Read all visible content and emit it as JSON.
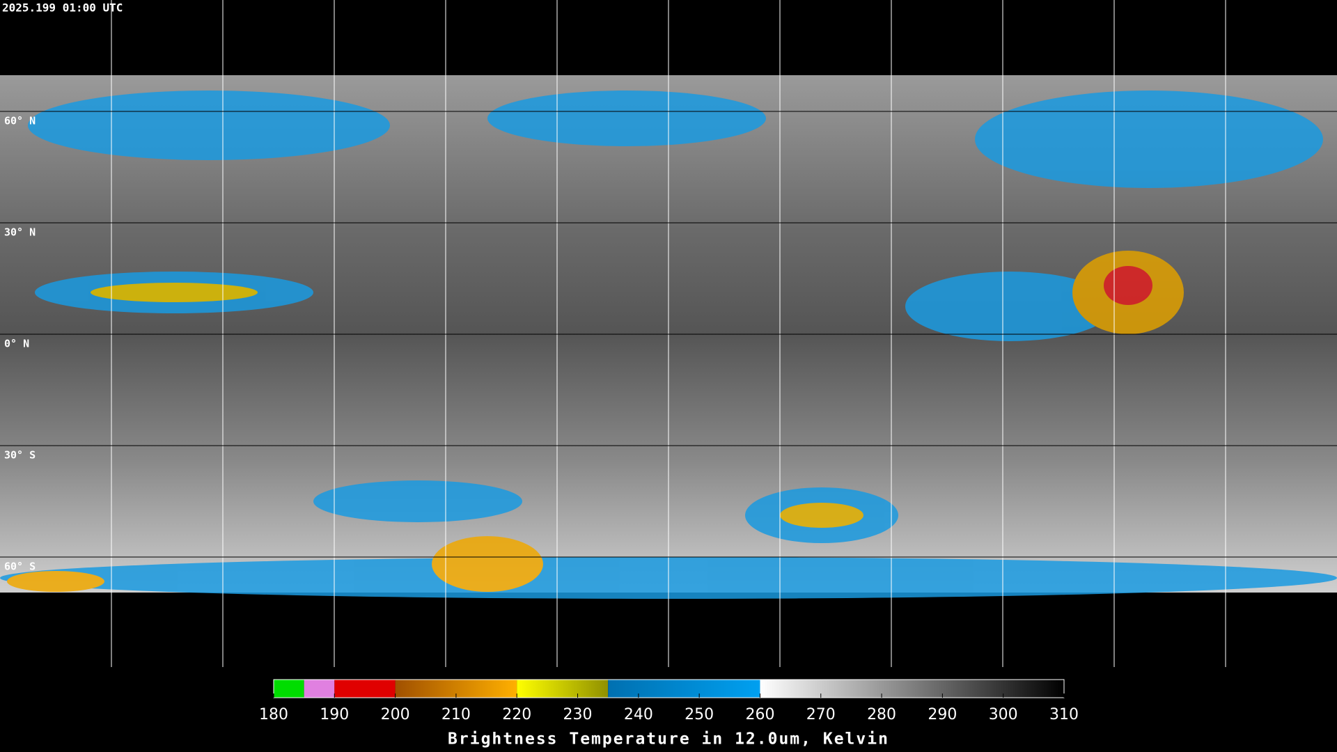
{
  "header": {
    "timestamp": "2025.199 01:00 UTC"
  },
  "map": {
    "lat_labels": [
      "60° N",
      "30° N",
      "0° N",
      "30° S",
      "60° S"
    ]
  },
  "colorbar": {
    "range": [
      180,
      310
    ],
    "ticks": [
      180,
      190,
      200,
      210,
      220,
      230,
      240,
      250,
      260,
      270,
      280,
      290,
      300,
      310
    ],
    "segments": [
      {
        "from": 180,
        "to": 185,
        "colors": [
          "#00dd00",
          "#00dd00"
        ]
      },
      {
        "from": 185,
        "to": 190,
        "colors": [
          "#e080e0",
          "#e080e0"
        ]
      },
      {
        "from": 190,
        "to": 200,
        "colors": [
          "#e00000",
          "#e00000"
        ]
      },
      {
        "from": 200,
        "to": 220,
        "colors": [
          "#a05000",
          "#ffb000"
        ]
      },
      {
        "from": 220,
        "to": 235,
        "colors": [
          "#ffff00",
          "#909000"
        ]
      },
      {
        "from": 235,
        "to": 260,
        "colors": [
          "#0070b0",
          "#00a0f0"
        ]
      },
      {
        "from": 260,
        "to": 310,
        "colors": [
          "#ffffff",
          "#000000"
        ]
      }
    ],
    "title": "Brightness Temperature in 12.0um, Kelvin"
  }
}
